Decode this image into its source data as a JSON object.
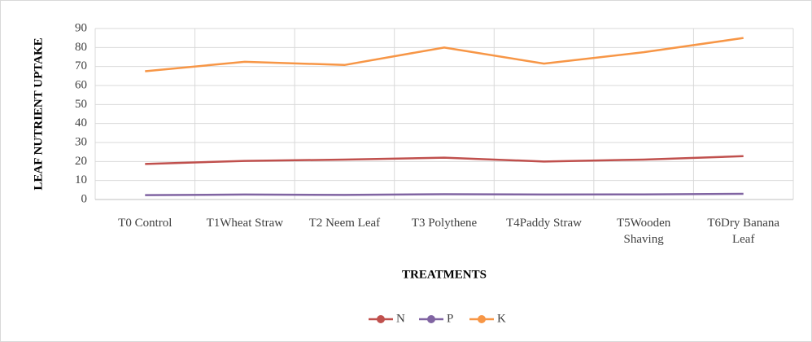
{
  "chart_data": {
    "type": "line",
    "xlabel": "TREATMENTS",
    "ylabel": "LEAF NUTRIENT UPTAKE",
    "categories": [
      "T0 Control",
      "T1Wheat Straw",
      "T2 Neem Leaf",
      "T3 Polythene",
      "T4Paddy Straw",
      "T5Wooden Shaving",
      "T6Dry Banana Leaf"
    ],
    "series": [
      {
        "name": "N",
        "color": "#c0504d",
        "values": [
          18.7,
          20.3,
          21.0,
          22.0,
          20.0,
          21.0,
          22.8
        ]
      },
      {
        "name": "P",
        "color": "#8064a2",
        "values": [
          2.3,
          2.6,
          2.4,
          2.8,
          2.6,
          2.7,
          3.0
        ]
      },
      {
        "name": "K",
        "color": "#f79646",
        "values": [
          67.5,
          72.5,
          70.8,
          80.0,
          71.5,
          77.5,
          85.0
        ]
      }
    ],
    "ylim": [
      0,
      90
    ],
    "yticks": [
      0,
      10,
      20,
      30,
      40,
      50,
      60,
      70,
      80,
      90
    ],
    "grid": true,
    "legend": "bottom"
  }
}
